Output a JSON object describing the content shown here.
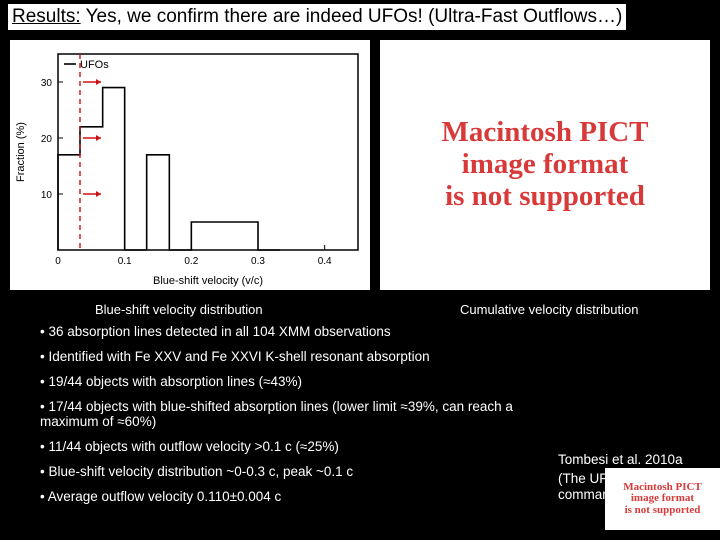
{
  "title": {
    "prefix": "Results:",
    "text": " Yes, we confirm there are indeed UFOs! (Ultra-Fast Outflows…)"
  },
  "chart": {
    "type": "histogram-step",
    "xlabel": "Blue-shift velocity (v/c)",
    "ylabel": "Fraction (%)",
    "legend_label": "UFOs",
    "xlim": [
      0,
      0.45
    ],
    "ylim": [
      0,
      35
    ],
    "xtick_step": 0.1,
    "ytick_step": 10,
    "bin_edges": [
      0,
      0.033,
      0.067,
      0.1,
      0.133,
      0.167,
      0.2,
      0.233,
      0.267,
      0.3,
      0.333
    ],
    "bin_heights": [
      17,
      22,
      29,
      0,
      17,
      0,
      5,
      5,
      5,
      0
    ],
    "line_color": "#000000",
    "vline_x": 0.033,
    "vline_color": "#d01010",
    "arrow_color": "#d01010",
    "background": "#ffffff",
    "axis_label_fontsize": 11,
    "tick_fontsize": 10
  },
  "placeholder": {
    "line1": "Macintosh PICT",
    "line2": "image format",
    "line3": "is not supported",
    "color": "#d83a3a"
  },
  "caption_left": "Blue-shift velocity distribution",
  "caption_right": "Cumulative velocity distribution",
  "bullets": [
    "36 absorption lines detected in all 104 XMM observations",
    "Identified with Fe XXV and Fe XXVI K-shell resonant absorption",
    "19/44 objects with absorption lines (≈43%)",
    "17/44 objects with blue-shifted absorption lines (lower limit ≈39%, can reach a maximum of ≈60%)",
    "11/44 objects with outflow velocity >0.1 c (≈25%)",
    "Blue-shift velocity distribution ~0-0.3 c, peak ~0.1 c",
    "Average outflow velocity 0.110±0.004 c"
  ],
  "citation": {
    "line1": "Tombesi et al. 2010a",
    "line2": "(The UFO's hunters commander in chief)"
  }
}
